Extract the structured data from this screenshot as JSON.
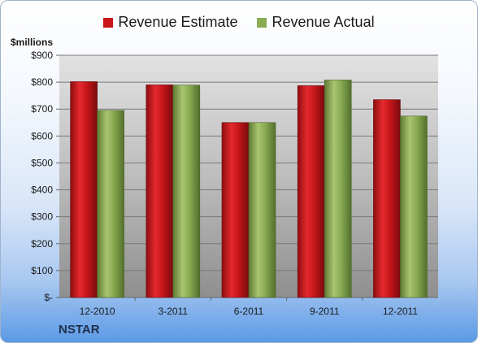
{
  "chart_data": {
    "type": "bar",
    "title": "",
    "ylabel": "$millions",
    "xlabel": "",
    "footer": "NSTAR",
    "categories": [
      "12-2010",
      "3-2011",
      "6-2011",
      "9-2011",
      "12-2011"
    ],
    "series": [
      {
        "name": "Revenue Estimate",
        "color": "#c8161b",
        "values": [
          802,
          790,
          650,
          787,
          735
        ]
      },
      {
        "name": "Revenue Actual",
        "color": "#8aac52",
        "values": [
          695,
          789,
          650,
          808,
          674
        ]
      }
    ],
    "ylim": [
      0,
      900
    ],
    "yticks": [
      0,
      100,
      200,
      300,
      400,
      500,
      600,
      700,
      800,
      900
    ],
    "ytick_labels": [
      "$-",
      "$100",
      "$200",
      "$300",
      "$400",
      "$500",
      "$600",
      "$700",
      "$800",
      "$900"
    ],
    "grid": true,
    "legend_position": "top"
  }
}
